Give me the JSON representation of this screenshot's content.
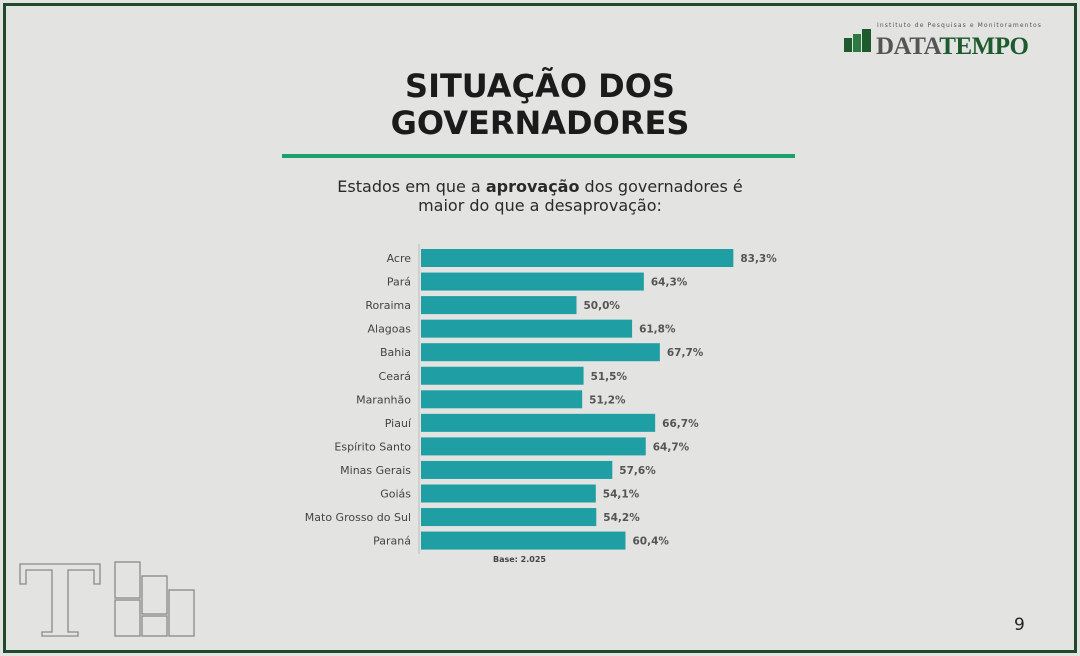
{
  "header": {
    "logo_tagline": "Instituto de Pesquisas e Monitoramentos",
    "logo_name_part1": "DATA",
    "logo_name_part2": "TEMPO",
    "title": "SITUAÇÃO DOS GOVERNADORES",
    "subtitle_before": "Estados em que a ",
    "subtitle_bold": "aprovação",
    "subtitle_after": " dos governadores é maior do que a desaprovação:"
  },
  "footer": {
    "base": "Base: 2.025",
    "page_number": "9"
  },
  "colors": {
    "bar": "#1f9fa3",
    "accent_rule": "#1aa06a",
    "frame": "#1f4a2c",
    "logo_green": "#1f5a2e"
  },
  "chart_data": {
    "type": "bar",
    "orientation": "horizontal",
    "categories": [
      "Acre",
      "Pará",
      "Roraima",
      "Alagoas",
      "Bahia",
      "Ceará",
      "Maranhão",
      "Piauí",
      "Espírito Santo",
      "Minas Gerais",
      "Goiás",
      "Mato Grosso do Sul",
      "Paraná"
    ],
    "values": [
      83.3,
      64.3,
      50.0,
      61.8,
      67.7,
      51.5,
      51.2,
      66.7,
      64.7,
      57.6,
      54.1,
      54.2,
      60.4
    ],
    "value_labels": [
      "83,3%",
      "64,3%",
      "50,0%",
      "61,8%",
      "67,7%",
      "51,5%",
      "51,2%",
      "66,7%",
      "64,7%",
      "57,6%",
      "54,1%",
      "54,2%",
      "60,4%"
    ],
    "unit": "%",
    "grid": false,
    "legend": "none"
  }
}
